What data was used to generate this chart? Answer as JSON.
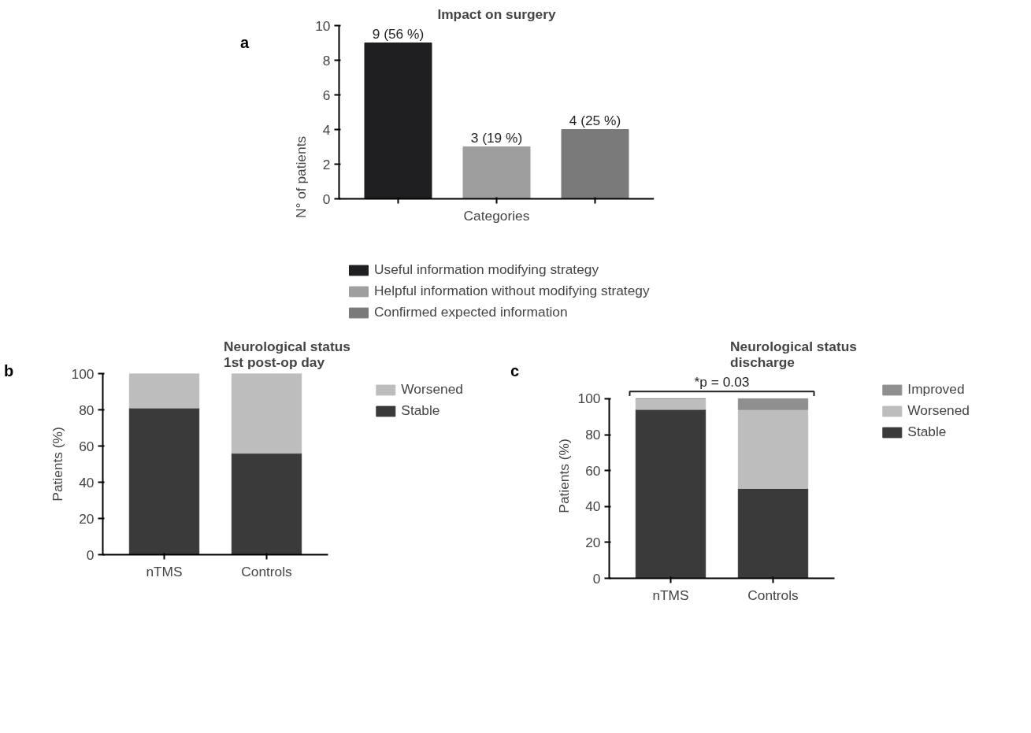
{
  "chart_data": [
    {
      "type": "bar",
      "title": "Impact on surgery",
      "xlabel": "Categories",
      "ylabel": "N° of patients",
      "annotations": [
        "a"
      ],
      "categories": [
        null,
        null,
        null
      ],
      "ylim": [
        0,
        10
      ],
      "yticks": [
        0,
        2,
        4,
        6,
        8,
        10
      ],
      "grid": false,
      "legend": "bottom",
      "tick_labels": "y",
      "series": [
        {
          "name": "Useful information modifying strategy",
          "color": "#1f1f21",
          "values": [
            9,
            null,
            null
          ],
          "value_labels": [
            "9 (56 %)",
            null,
            null
          ]
        },
        {
          "name": "Helpful information without modifying strategy",
          "color": "#9e9e9e",
          "values": [
            null,
            3,
            null
          ],
          "value_labels": [
            null,
            "3 (19 %)",
            null
          ]
        },
        {
          "name": "Confirmed expected information",
          "color": "#7a7a7a",
          "values": [
            null,
            null,
            4
          ],
          "value_labels": [
            null,
            null,
            "4 (25 %)"
          ]
        }
      ]
    },
    {
      "type": "bar",
      "title": "Neurological status\n1st post-op day",
      "ylabel": "Patients (%)",
      "annotations": [
        "b"
      ],
      "categories": [
        "nTMS",
        "Controls"
      ],
      "stacked": true,
      "ylim": [
        0,
        100
      ],
      "yticks": [
        0,
        20,
        40,
        60,
        80,
        100
      ],
      "grid": false,
      "legend": "right",
      "series": [
        {
          "name": "Stable",
          "color": "#3a3a3a",
          "values": [
            81,
            56
          ]
        },
        {
          "name": "Worsened",
          "color": "#bdbdbd",
          "values": [
            19,
            44
          ]
        }
      ]
    },
    {
      "type": "bar",
      "title": "Neurological status\ndischarge",
      "ylabel": "Patients (%)",
      "annotations": [
        "c",
        "*p = 0.03"
      ],
      "categories": [
        "nTMS",
        "Controls"
      ],
      "stacked": true,
      "ylim": [
        0,
        100
      ],
      "yticks": [
        0,
        20,
        40,
        60,
        80,
        100
      ],
      "grid": false,
      "legend": "right",
      "series": [
        {
          "name": "Stable",
          "color": "#3a3a3a",
          "values": [
            94,
            50
          ]
        },
        {
          "name": "Worsened",
          "color": "#bdbdbd",
          "values": [
            6,
            44
          ]
        },
        {
          "name": "Improved",
          "color": "#8f8f8f",
          "values": [
            0,
            6
          ]
        }
      ]
    }
  ]
}
